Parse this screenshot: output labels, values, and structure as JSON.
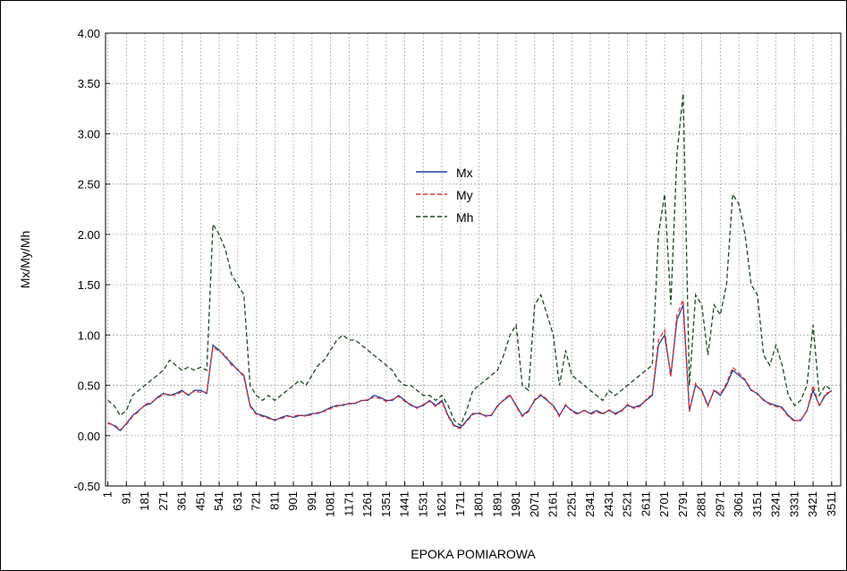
{
  "chart_data": {
    "type": "line",
    "x_label": "EPOKA POMIAROWA",
    "y_label": "Mx/My/Mh",
    "x": [
      1,
      31,
      61,
      91,
      121,
      151,
      181,
      211,
      241,
      271,
      301,
      331,
      361,
      391,
      421,
      451,
      481,
      511,
      541,
      571,
      601,
      631,
      661,
      691,
      721,
      751,
      781,
      811,
      841,
      871,
      901,
      931,
      961,
      991,
      1021,
      1051,
      1081,
      1111,
      1141,
      1171,
      1201,
      1231,
      1261,
      1291,
      1321,
      1351,
      1381,
      1411,
      1441,
      1471,
      1501,
      1531,
      1561,
      1591,
      1621,
      1651,
      1681,
      1711,
      1741,
      1771,
      1801,
      1831,
      1861,
      1891,
      1921,
      1951,
      1981,
      2011,
      2041,
      2071,
      2101,
      2131,
      2161,
      2191,
      2221,
      2251,
      2281,
      2311,
      2341,
      2371,
      2401,
      2431,
      2461,
      2491,
      2521,
      2551,
      2581,
      2611,
      2641,
      2671,
      2701,
      2731,
      2761,
      2791,
      2821,
      2851,
      2881,
      2911,
      2941,
      2971,
      3001,
      3031,
      3061,
      3091,
      3121,
      3151,
      3181,
      3211,
      3241,
      3271,
      3301,
      3331,
      3361,
      3391,
      3421,
      3451,
      3481,
      3511
    ],
    "series": [
      {
        "name": "Mx",
        "color": "#1f3f9f",
        "style": "solid",
        "values": [
          0.13,
          0.1,
          0.05,
          0.12,
          0.2,
          0.25,
          0.3,
          0.32,
          0.38,
          0.42,
          0.4,
          0.42,
          0.45,
          0.4,
          0.45,
          0.45,
          0.42,
          0.9,
          0.85,
          0.78,
          0.72,
          0.65,
          0.6,
          0.3,
          0.22,
          0.2,
          0.18,
          0.15,
          0.18,
          0.2,
          0.18,
          0.2,
          0.2,
          0.22,
          0.22,
          0.25,
          0.28,
          0.3,
          0.3,
          0.32,
          0.32,
          0.35,
          0.35,
          0.4,
          0.38,
          0.35,
          0.35,
          0.4,
          0.35,
          0.3,
          0.28,
          0.3,
          0.35,
          0.3,
          0.35,
          0.2,
          0.1,
          0.08,
          0.15,
          0.22,
          0.22,
          0.2,
          0.2,
          0.3,
          0.35,
          0.4,
          0.3,
          0.2,
          0.25,
          0.35,
          0.4,
          0.35,
          0.3,
          0.2,
          0.3,
          0.25,
          0.22,
          0.25,
          0.22,
          0.25,
          0.22,
          0.25,
          0.22,
          0.25,
          0.3,
          0.28,
          0.3,
          0.35,
          0.4,
          0.9,
          1.0,
          0.6,
          1.15,
          1.3,
          0.25,
          0.5,
          0.45,
          0.3,
          0.45,
          0.4,
          0.5,
          0.65,
          0.6,
          0.55,
          0.45,
          0.42,
          0.35,
          0.32,
          0.3,
          0.28,
          0.2,
          0.15,
          0.15,
          0.25,
          0.45,
          0.3,
          0.4,
          0.45
        ]
      },
      {
        "name": "My",
        "color": "#e83030",
        "style": "dashed",
        "values": [
          0.12,
          0.11,
          0.06,
          0.11,
          0.19,
          0.24,
          0.31,
          0.33,
          0.37,
          0.41,
          0.41,
          0.4,
          0.44,
          0.41,
          0.44,
          0.43,
          0.43,
          0.88,
          0.84,
          0.8,
          0.7,
          0.66,
          0.58,
          0.29,
          0.21,
          0.19,
          0.17,
          0.16,
          0.17,
          0.19,
          0.19,
          0.21,
          0.19,
          0.21,
          0.23,
          0.24,
          0.27,
          0.29,
          0.31,
          0.31,
          0.33,
          0.34,
          0.36,
          0.38,
          0.37,
          0.34,
          0.36,
          0.39,
          0.34,
          0.31,
          0.27,
          0.31,
          0.34,
          0.29,
          0.34,
          0.19,
          0.09,
          0.07,
          0.14,
          0.21,
          0.23,
          0.19,
          0.21,
          0.29,
          0.36,
          0.41,
          0.29,
          0.19,
          0.24,
          0.36,
          0.41,
          0.36,
          0.29,
          0.19,
          0.31,
          0.24,
          0.21,
          0.26,
          0.21,
          0.24,
          0.21,
          0.26,
          0.21,
          0.24,
          0.31,
          0.27,
          0.29,
          0.36,
          0.41,
          0.95,
          1.05,
          0.58,
          1.2,
          1.35,
          0.24,
          0.52,
          0.44,
          0.29,
          0.46,
          0.41,
          0.52,
          0.68,
          0.62,
          0.56,
          0.46,
          0.41,
          0.36,
          0.31,
          0.29,
          0.27,
          0.19,
          0.14,
          0.16,
          0.24,
          0.5,
          0.29,
          0.42,
          0.44
        ]
      },
      {
        "name": "Mh",
        "color": "#1a4a20",
        "style": "dashed",
        "values": [
          0.35,
          0.3,
          0.2,
          0.25,
          0.4,
          0.45,
          0.5,
          0.55,
          0.6,
          0.65,
          0.75,
          0.7,
          0.65,
          0.68,
          0.65,
          0.68,
          0.65,
          2.1,
          2.0,
          1.85,
          1.6,
          1.5,
          1.4,
          0.5,
          0.4,
          0.35,
          0.4,
          0.35,
          0.4,
          0.45,
          0.5,
          0.55,
          0.5,
          0.6,
          0.7,
          0.75,
          0.85,
          0.95,
          1.0,
          0.95,
          0.95,
          0.9,
          0.85,
          0.8,
          0.75,
          0.7,
          0.65,
          0.55,
          0.5,
          0.5,
          0.45,
          0.4,
          0.4,
          0.35,
          0.4,
          0.3,
          0.15,
          0.1,
          0.25,
          0.45,
          0.5,
          0.55,
          0.6,
          0.65,
          0.8,
          1.0,
          1.1,
          0.5,
          0.45,
          1.3,
          1.4,
          1.2,
          1.0,
          0.5,
          0.85,
          0.6,
          0.55,
          0.5,
          0.45,
          0.4,
          0.35,
          0.45,
          0.4,
          0.45,
          0.5,
          0.55,
          0.6,
          0.65,
          0.7,
          2.0,
          2.4,
          1.3,
          2.8,
          3.4,
          0.5,
          1.4,
          1.3,
          0.8,
          1.3,
          1.2,
          1.5,
          2.4,
          2.3,
          2.0,
          1.5,
          1.4,
          0.8,
          0.7,
          0.9,
          0.7,
          0.4,
          0.3,
          0.35,
          0.5,
          1.1,
          0.4,
          0.5,
          0.45
        ]
      }
    ],
    "xlim": [
      -10,
      3555
    ],
    "xticks": [
      1,
      91,
      181,
      271,
      361,
      451,
      541,
      631,
      721,
      811,
      901,
      991,
      1081,
      1171,
      1261,
      1351,
      1441,
      1531,
      1621,
      1711,
      1801,
      1891,
      1981,
      2071,
      2161,
      2251,
      2341,
      2431,
      2521,
      2611,
      2701,
      2791,
      2881,
      2971,
      3061,
      3151,
      3241,
      3331,
      3421,
      3511
    ],
    "ylim": [
      -0.5,
      4
    ],
    "yticks": [
      {
        "value": -0.5,
        "label": "-0.50"
      },
      {
        "value": 0,
        "label": "0.00"
      },
      {
        "value": 0.5,
        "label": "0.50"
      },
      {
        "value": 1,
        "label": "1.00"
      },
      {
        "value": 1.5,
        "label": "1.50"
      },
      {
        "value": 2,
        "label": "2.00"
      },
      {
        "value": 2.5,
        "label": "2.50"
      },
      {
        "value": 3,
        "label": "3.00"
      },
      {
        "value": 3.5,
        "label": "3.50"
      },
      {
        "value": 4,
        "label": "4.00"
      }
    ],
    "grid": true
  }
}
